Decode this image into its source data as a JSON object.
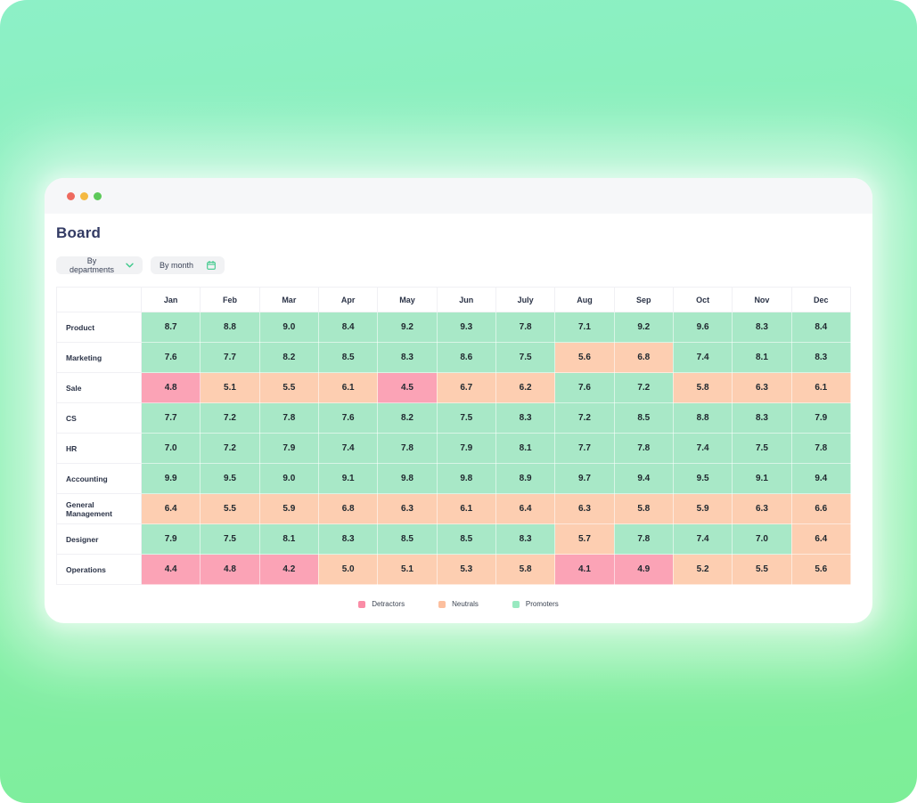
{
  "theme": {
    "background_top": "#8df0c7",
    "background_bottom": "#7dee97",
    "accent_green": "#3ec98b",
    "title_color": "#333b64"
  },
  "window": {
    "title": "Board",
    "traffic_lights": [
      {
        "name": "close-button",
        "color": "#ee6a5f"
      },
      {
        "name": "minimize-button",
        "color": "#f4b942"
      },
      {
        "name": "zoom-button",
        "color": "#5dc95a"
      }
    ]
  },
  "filters": {
    "departments": {
      "label": "By departments",
      "icon": "chevron-down-icon"
    },
    "month": {
      "label": "By month",
      "icon": "calendar-icon"
    }
  },
  "chart_data": {
    "type": "heatmap",
    "title": "Board",
    "columns": [
      "Jan",
      "Feb",
      "Mar",
      "Apr",
      "May",
      "Jun",
      "July",
      "Aug",
      "Sep",
      "Oct",
      "Nov",
      "Dec"
    ],
    "rows": [
      {
        "name": "Product",
        "values": [
          8.7,
          8.8,
          9.0,
          8.4,
          9.2,
          9.3,
          7.8,
          7.1,
          9.2,
          9.6,
          8.3,
          8.4
        ]
      },
      {
        "name": "Marketing",
        "values": [
          7.6,
          7.7,
          8.2,
          8.5,
          8.3,
          8.6,
          7.5,
          5.6,
          6.8,
          7.4,
          8.1,
          8.3
        ]
      },
      {
        "name": "Sale",
        "values": [
          4.8,
          5.1,
          5.5,
          6.1,
          4.5,
          6.7,
          6.2,
          7.6,
          7.2,
          5.8,
          6.3,
          6.1
        ]
      },
      {
        "name": "CS",
        "values": [
          7.7,
          7.2,
          7.8,
          7.6,
          8.2,
          7.5,
          8.3,
          7.2,
          8.5,
          8.8,
          8.3,
          7.9
        ]
      },
      {
        "name": "HR",
        "values": [
          7.0,
          7.2,
          7.9,
          7.4,
          7.8,
          7.9,
          8.1,
          7.7,
          7.8,
          7.4,
          7.5,
          7.8
        ]
      },
      {
        "name": "Accounting",
        "values": [
          9.9,
          9.5,
          9.0,
          9.1,
          9.8,
          9.8,
          8.9,
          9.7,
          9.4,
          9.5,
          9.1,
          9.4
        ]
      },
      {
        "name": "General Management",
        "values": [
          6.4,
          5.5,
          5.9,
          6.8,
          6.3,
          6.1,
          6.4,
          6.3,
          5.8,
          5.9,
          6.3,
          6.6
        ]
      },
      {
        "name": "Designer",
        "values": [
          7.9,
          7.5,
          8.1,
          8.3,
          8.5,
          8.5,
          8.3,
          5.7,
          7.8,
          7.4,
          7.0,
          6.4
        ]
      },
      {
        "name": "Operations",
        "values": [
          4.4,
          4.8,
          4.2,
          5.0,
          5.1,
          5.3,
          5.8,
          4.1,
          4.9,
          5.2,
          5.5,
          5.6
        ]
      }
    ],
    "value_format": "one_decimal",
    "color_scale": {
      "detractors": {
        "max_exclusive": 5.0,
        "color": "#fba3b6"
      },
      "neutrals": {
        "min": 5.0,
        "max_exclusive": 7.0,
        "color": "#fdceb1"
      },
      "promoters": {
        "min": 7.0,
        "color": "#a8e8c7"
      }
    },
    "legend": [
      {
        "label": "Detractors",
        "color": "#fa8ca6"
      },
      {
        "label": "Neutrals",
        "color": "#fcbf9e"
      },
      {
        "label": "Promoters",
        "color": "#98e9c0"
      }
    ],
    "legend_position": "bottom-center",
    "grid": true
  }
}
